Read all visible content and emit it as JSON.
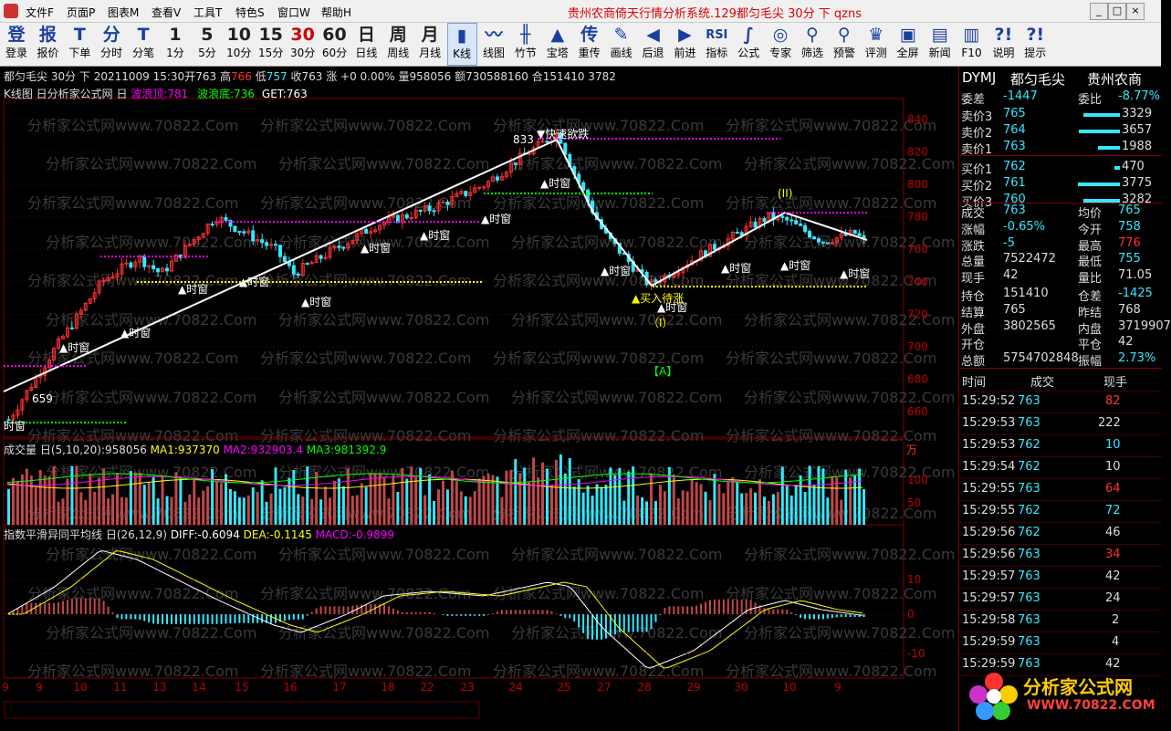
{
  "menu": {
    "items": [
      "文件F",
      "页面P",
      "图表M",
      "查看V",
      "工具T",
      "特色S",
      "窗口W",
      "帮助H"
    ],
    "title": "贵州农商倚天行情分析系统.129都匀毛尖 30分 下 qzns"
  },
  "toolbar": [
    {
      "icon": "登",
      "label": "登录",
      "name": "login"
    },
    {
      "icon": "报",
      "label": "报价",
      "name": "quote"
    },
    {
      "icon": "T",
      "label": "下单",
      "name": "order"
    },
    {
      "icon": "分",
      "label": "分时",
      "name": "intraday"
    },
    {
      "icon": "T",
      "label": "分笔",
      "name": "tick"
    },
    {
      "icon": "1",
      "label": "1分",
      "name": "1min"
    },
    {
      "icon": "5",
      "label": "5分",
      "name": "5min"
    },
    {
      "icon": "10",
      "label": "10分",
      "name": "10min"
    },
    {
      "icon": "15",
      "label": "15分",
      "name": "15min"
    },
    {
      "icon": "30",
      "label": "30分",
      "name": "30min"
    },
    {
      "icon": "60",
      "label": "60分",
      "name": "60min"
    },
    {
      "icon": "日",
      "label": "日线",
      "name": "daily"
    },
    {
      "icon": "周",
      "label": "周线",
      "name": "weekly"
    },
    {
      "icon": "月",
      "label": "月线",
      "name": "monthly"
    },
    {
      "icon": "▮",
      "label": "K线",
      "name": "kline"
    },
    {
      "icon": "〰",
      "label": "线图",
      "name": "linechart"
    },
    {
      "icon": "╫",
      "label": "竹节",
      "name": "bamboo"
    },
    {
      "icon": "▲",
      "label": "宝塔",
      "name": "tower"
    },
    {
      "icon": "传",
      "label": "重传",
      "name": "resend"
    },
    {
      "icon": "✎",
      "label": "画线",
      "name": "draw"
    },
    {
      "icon": "◀",
      "label": "后退",
      "name": "back"
    },
    {
      "icon": "▶",
      "label": "前进",
      "name": "forward"
    },
    {
      "icon": "RSI",
      "label": "指标",
      "name": "indicator"
    },
    {
      "icon": "∫",
      "label": "公式",
      "name": "formula"
    },
    {
      "icon": "◎",
      "label": "专家",
      "name": "expert"
    },
    {
      "icon": "⚲",
      "label": "筛选",
      "name": "screen"
    },
    {
      "icon": "⚲",
      "label": "预警",
      "name": "alert"
    },
    {
      "icon": "♛",
      "label": "评测",
      "name": "evaluate"
    },
    {
      "icon": "▣",
      "label": "全屏",
      "name": "fullscreen"
    },
    {
      "icon": "▤",
      "label": "新闻",
      "name": "news"
    },
    {
      "icon": "▥",
      "label": "F10",
      "name": "f10"
    },
    {
      "icon": "?!",
      "label": "说明",
      "name": "manual"
    },
    {
      "icon": "?!",
      "label": "提示",
      "name": "tips"
    }
  ],
  "info_bar": {
    "symbol": "都匀毛尖 30分 下 20211009 15:30",
    "open_label": "开",
    "open": "763",
    "high_label": "高",
    "high": "766",
    "low_label": "低",
    "low": "757",
    "close_label": "收",
    "close": "763",
    "change_label": "涨",
    "change": "+0 0.00%",
    "volume": "量958056",
    "amount": "额730588160",
    "oi": "合151410 3782"
  },
  "kline_panel": {
    "title": "K线图 日分析家公式网 日",
    "wave_top_label": "波浪顶:781",
    "wave_bottom_label": "波浪底:736",
    "get_label": "GET:763",
    "yaxis": [
      "840",
      "820",
      "800",
      "780",
      "760",
      "740",
      "720",
      "700",
      "680",
      "660"
    ],
    "annotations": {
      "peak": "833",
      "peak_signal": "▼快速欲跌",
      "low_val": "659",
      "buy_signal": "▲买入待涨",
      "wave1": "（I）",
      "wave2": "(II)",
      "wave_a": "【A】",
      "signal_label": "▲时窗",
      "left_signal": "时窗"
    }
  },
  "volume_panel": {
    "title": "成交量 日(5,10,20)",
    "value": ":958056",
    "ma1": "MA1:937370",
    "ma2": "MA2:932903.4",
    "ma3": "MA3:981392.9",
    "unit": "万",
    "yaxis": [
      "100",
      "50"
    ]
  },
  "macd_panel": {
    "title": "指数平滑异同平均线 日(26,12,9)",
    "diff": "DIFF:-0.6094",
    "dea": "DEA:-0.1145",
    "macd": "MACD:-0.9899",
    "yaxis": [
      "10",
      "0",
      "-10"
    ]
  },
  "xaxis": [
    "9",
    "9",
    "10",
    "11",
    "13",
    "14",
    "15",
    "16",
    "17",
    "18",
    "22",
    "23",
    "24",
    "25",
    "27",
    "28",
    "29",
    "30",
    "10",
    "9"
  ],
  "watermark": "分析家公式网www.70822.Com",
  "quote_panel": {
    "code": "DYMJ",
    "name": "都匀毛尖",
    "exchange": "贵州农商",
    "commission_diff_label": "委差",
    "commission_diff": "-1447",
    "commission_ratio_label": "委比",
    "commission_ratio": "-8.77%",
    "asks": [
      {
        "label": "卖价3",
        "price": "765",
        "vol": "3329",
        "fill": 0.88
      },
      {
        "label": "卖价2",
        "price": "764",
        "vol": "3657",
        "fill": 0.97
      },
      {
        "label": "卖价1",
        "price": "763",
        "vol": "1988",
        "fill": 0.53
      }
    ],
    "bids": [
      {
        "label": "买价1",
        "price": "762",
        "vol": "470",
        "fill": 0.12
      },
      {
        "label": "买价2",
        "price": "761",
        "vol": "3775",
        "fill": 1.0
      },
      {
        "label": "买价3",
        "price": "760",
        "vol": "3282",
        "fill": 0.87
      }
    ],
    "stats": [
      {
        "l1": "成交",
        "v1": "763",
        "l2": "均价",
        "v2": "765"
      },
      {
        "l1": "涨幅",
        "v1": "-0.65%",
        "l2": "今开",
        "v2": "758"
      },
      {
        "l1": "涨跌",
        "v1": "-5",
        "l2": "最高",
        "v2": "776"
      },
      {
        "l1": "总量",
        "v1": "7522472",
        "l2": "最低",
        "v2": "755"
      },
      {
        "l1": "现手",
        "v1": "42",
        "l2": "量比",
        "v2": "71.05"
      },
      {
        "l1": "持仓",
        "v1": "151410",
        "l2": "仓差",
        "v2": "-1425"
      },
      {
        "l1": "结算",
        "v1": "765",
        "l2": "昨结",
        "v2": "768"
      },
      {
        "l1": "外盘",
        "v1": "3802565",
        "l2": "内盘",
        "v2": "3719907"
      },
      {
        "l1": "开仓",
        "v1": "",
        "l2": "平仓",
        "v2": "42"
      },
      {
        "l1": "总额",
        "v1": "5754702848",
        "l2": "振幅",
        "v2": "2.73%"
      }
    ],
    "ticks_header": {
      "time": "时间",
      "price": "成交",
      "vol": "现手"
    },
    "ticks": [
      {
        "time": "15:29:52",
        "price": "763",
        "vol": "82",
        "dir": "up"
      },
      {
        "time": "15:29:53",
        "price": "763",
        "vol": "222",
        "dir": "flat"
      },
      {
        "time": "15:29:53",
        "price": "762",
        "vol": "10",
        "dir": "down"
      },
      {
        "time": "15:29:54",
        "price": "762",
        "vol": "10",
        "dir": "flat"
      },
      {
        "time": "15:29:55",
        "price": "763",
        "vol": "64",
        "dir": "up"
      },
      {
        "time": "15:29:55",
        "price": "762",
        "vol": "72",
        "dir": "down"
      },
      {
        "time": "15:29:56",
        "price": "762",
        "vol": "46",
        "dir": "flat"
      },
      {
        "time": "15:29:56",
        "price": "763",
        "vol": "34",
        "dir": "up"
      },
      {
        "time": "15:29:57",
        "price": "763",
        "vol": "42",
        "dir": "flat"
      },
      {
        "time": "15:29:57",
        "price": "763",
        "vol": "24",
        "dir": "flat"
      },
      {
        "time": "15:29:58",
        "price": "763",
        "vol": "2",
        "dir": "flat"
      },
      {
        "time": "15:29:59",
        "price": "763",
        "vol": "4",
        "dir": "flat"
      },
      {
        "time": "15:29:59",
        "price": "763",
        "vol": "42",
        "dir": "flat"
      }
    ],
    "brand": "分析家公式网",
    "brand_url": "WWW.70822.COM"
  },
  "colors": {
    "up": "#ff3030",
    "down": "#33e8ff",
    "white": "#ffffff",
    "yellow": "#ffff00",
    "magenta": "#ff00ff",
    "green": "#00ff00"
  }
}
